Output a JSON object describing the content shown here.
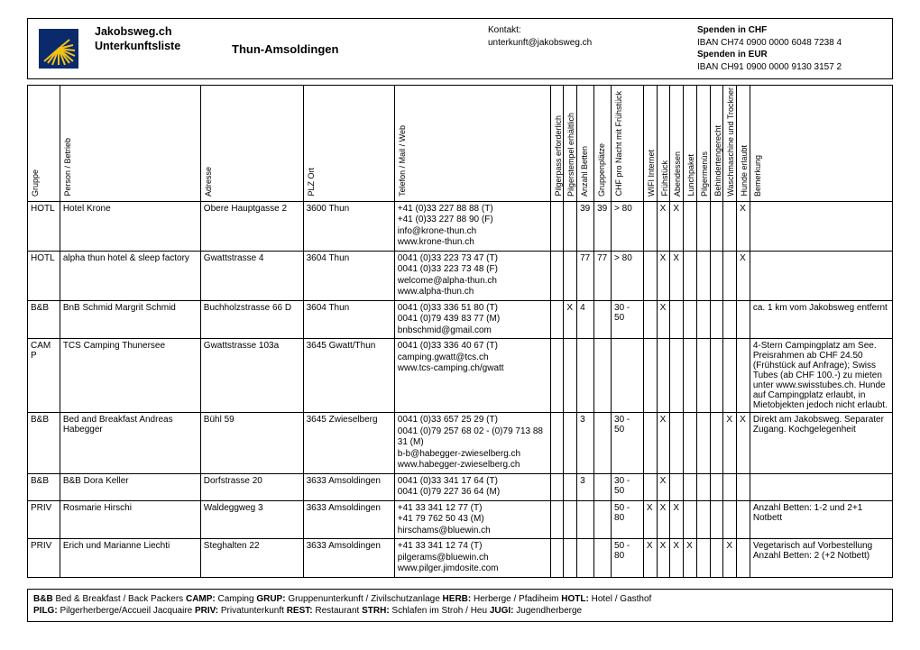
{
  "header": {
    "title_line1": "Jakobsweg.ch",
    "title_line2": "Unterkunftsliste",
    "route": "Thun-Amsoldingen",
    "contact_label": "Kontakt:",
    "contact_email": "unterkunft@jakobsweg.ch",
    "donate_chf_label": "Spenden in CHF",
    "donate_chf_iban": "IBAN CH74 0900 0000 6048 7238 4",
    "donate_eur_label": "Spenden in EUR",
    "donate_eur_iban": "IBAN CH91 0900 0000 9130 3157 2"
  },
  "columns": {
    "gruppe": "Gruppe",
    "person": "Person / Betrieb",
    "adresse": "Adresse",
    "plz": "PLZ Ort",
    "tel": "Telefon / Mail / Web",
    "pilgerpass": "Pilgerpass erforderlich",
    "stempel": "Pilgerstempel erhältlich",
    "betten": "Anzahl Betten",
    "gruppen": "Gruppenplätze",
    "preis": "CHF pro Nacht mit Frühstück",
    "wifi": "WIFI Internet",
    "fruehstueck": "Frühstück",
    "abendessen": "Abendessen",
    "lunchpaket": "Lunchpaket",
    "menu": "Pilgermenüs",
    "behindert": "Behindertengerecht",
    "waschen": "Waschmaschine und Trockner",
    "hunde": "Hunde erlaubt",
    "bemerkung": "Bemerkung"
  },
  "rows": [
    {
      "gruppe": "HOTL",
      "person": "Hotel  Krone",
      "adresse": "Obere Hauptgasse 2",
      "plz": "3600 Thun",
      "contact": [
        "+41 (0)33 227 88 88 (T)",
        "+41 (0)33 227 88 90 (F)",
        "info@krone-thun.ch",
        "www.krone-thun.ch"
      ],
      "pilgerpass": "",
      "stempel": "",
      "betten": "39",
      "gruppen": "39",
      "preis": "> 80",
      "wifi": "",
      "fruehstueck": "X",
      "abendessen": "X",
      "lunchpaket": "",
      "menu": "",
      "behindert": "",
      "waschen": "",
      "hunde": "X",
      "bemerkung": ""
    },
    {
      "gruppe": "HOTL",
      "person": "alpha thun hotel & sleep factory",
      "adresse": "Gwattstrasse 4",
      "plz": "3604 Thun",
      "contact": [
        "0041 (0)33 223 73 47 (T)",
        "0041 (0)33 223 73 48 (F)",
        "welcome@alpha-thun.ch",
        "www.alpha-thun.ch"
      ],
      "pilgerpass": "",
      "stempel": "",
      "betten": "77",
      "gruppen": "77",
      "preis": "> 80",
      "wifi": "",
      "fruehstueck": "X",
      "abendessen": "X",
      "lunchpaket": "",
      "menu": "",
      "behindert": "",
      "waschen": "",
      "hunde": "X",
      "bemerkung": ""
    },
    {
      "gruppe": "B&B",
      "person": "BnB Schmid Margrit Schmid",
      "adresse": "Buchholzstrasse 66 D",
      "plz": "3604 Thun",
      "contact": [
        "0041 (0)33 336 51 80 (T)",
        "0041 (0)79 439 83 77 (M)",
        "bnbschmid@gmail.com"
      ],
      "pilgerpass": "",
      "stempel": "X",
      "betten": "4",
      "gruppen": "",
      "preis": "30 - 50",
      "wifi": "",
      "fruehstueck": "X",
      "abendessen": "",
      "lunchpaket": "",
      "menu": "",
      "behindert": "",
      "waschen": "",
      "hunde": "",
      "bemerkung": "ca. 1 km vom Jakobsweg entfernt"
    },
    {
      "gruppe": "CAMP",
      "person": "TCS Camping Thunersee",
      "adresse": "Gwattstrasse 103a",
      "plz": "3645 Gwatt/Thun",
      "contact": [
        "0041 (0)33 336 40 67 (T)",
        "camping.gwatt@tcs.ch",
        "www.tcs-camping.ch/gwatt"
      ],
      "pilgerpass": "",
      "stempel": "",
      "betten": "",
      "gruppen": "",
      "preis": "",
      "wifi": "",
      "fruehstueck": "",
      "abendessen": "",
      "lunchpaket": "",
      "menu": "",
      "behindert": "",
      "waschen": "",
      "hunde": "",
      "bemerkung": "4-Stern Campingplatz am See. Preisrahmen ab CHF 24.50 (Frühstück auf Anfrage); Swiss Tubes (ab CHF 100.-) zu mieten unter www.swisstubes.ch. Hunde auf Campingplatz erlaubt, in Mietobjekten jedoch nicht erlaubt."
    },
    {
      "gruppe": "B&B",
      "person": "Bed and Breakfast Andreas Habegger",
      "adresse": "Bühl 59",
      "plz": "3645 Zwieselberg",
      "contact": [
        "0041 (0)33 657 25 29 (T)",
        "0041 (0)79 257 68 02 - (0)79 713 88 31 (M)",
        "b-b@habegger-zwieselberg.ch",
        "www.habegger-zwieselberg.ch"
      ],
      "pilgerpass": "",
      "stempel": "",
      "betten": "3",
      "gruppen": "",
      "preis": "30 - 50",
      "wifi": "",
      "fruehstueck": "X",
      "abendessen": "",
      "lunchpaket": "",
      "menu": "",
      "behindert": "",
      "waschen": "X",
      "hunde": "X",
      "bemerkung": "Direkt am Jakobsweg. Separater Zugang. Kochgelegenheit"
    },
    {
      "gruppe": "B&B",
      "person": "B&B Dora Keller",
      "adresse": "Dorfstrasse 20",
      "plz": "3633 Amsoldingen",
      "contact": [
        "0041 (0)33 341 17 64 (T)",
        "0041 (0)79 227 36 64 (M)"
      ],
      "pilgerpass": "",
      "stempel": "",
      "betten": "3",
      "gruppen": "",
      "preis": "30 - 50",
      "wifi": "",
      "fruehstueck": "X",
      "abendessen": "",
      "lunchpaket": "",
      "menu": "",
      "behindert": "",
      "waschen": "",
      "hunde": "",
      "bemerkung": ""
    },
    {
      "gruppe": "PRIV",
      "person": "Rosmarie Hirschi",
      "adresse": "Waldeggweg 3",
      "plz": "3633 Amsoldingen",
      "contact": [
        "+41 33 341 12 77 (T)",
        "+41 79 762 50 43 (M)",
        "hirschams@bluewin.ch"
      ],
      "pilgerpass": "",
      "stempel": "",
      "betten": "",
      "gruppen": "",
      "preis": "50 - 80",
      "wifi": "X",
      "fruehstueck": "X",
      "abendessen": "X",
      "lunchpaket": "",
      "menu": "",
      "behindert": "",
      "waschen": "",
      "hunde": "",
      "bemerkung": "Anzahl Betten: 1-2 und 2+1 Notbett"
    },
    {
      "gruppe": "PRIV",
      "person": "Erich und Marianne Liechti",
      "adresse": "Steghalten 22",
      "plz": "3633 Amsoldingen",
      "contact": [
        "+41 33 341 12 74 (T)",
        "pilgerams@bluewin.ch",
        "www.pilger.jimdosite.com"
      ],
      "pilgerpass": "",
      "stempel": "",
      "betten": "",
      "gruppen": "",
      "preis": "50 - 80",
      "wifi": "X",
      "fruehstueck": "X",
      "abendessen": "X",
      "lunchpaket": "X",
      "menu": "",
      "behindert": "",
      "waschen": "X",
      "hunde": "",
      "bemerkung": "Vegetarisch auf Vorbestellung Anzahl Betten: 2 (+2 Notbett)"
    }
  ],
  "legend": {
    "line1_parts": [
      {
        "b": "B&B",
        "t": " Bed & Breakfast  / Back Packers "
      },
      {
        "b": "CAMP:",
        "t": " Camping "
      },
      {
        "b": "GRUP:",
        "t": " Gruppenunterkunft / Zivilschutzanlage "
      },
      {
        "b": "HERB:",
        "t": " Herberge / Pfadiheim "
      },
      {
        "b": "HOTL:",
        "t": " Hotel / Gasthof"
      }
    ],
    "line2_parts": [
      {
        "b": "PILG:",
        "t": " Pilgerherberge/Accueil Jacquaire "
      },
      {
        "b": "PRIV:",
        "t": " Privatunterkunft  "
      },
      {
        "b": "REST:",
        "t": " Restaurant "
      },
      {
        "b": "STRH:",
        "t": " Schlafen im Stroh / Heu "
      },
      {
        "b": "JUGI:",
        "t": " Jugendherberge"
      }
    ]
  }
}
